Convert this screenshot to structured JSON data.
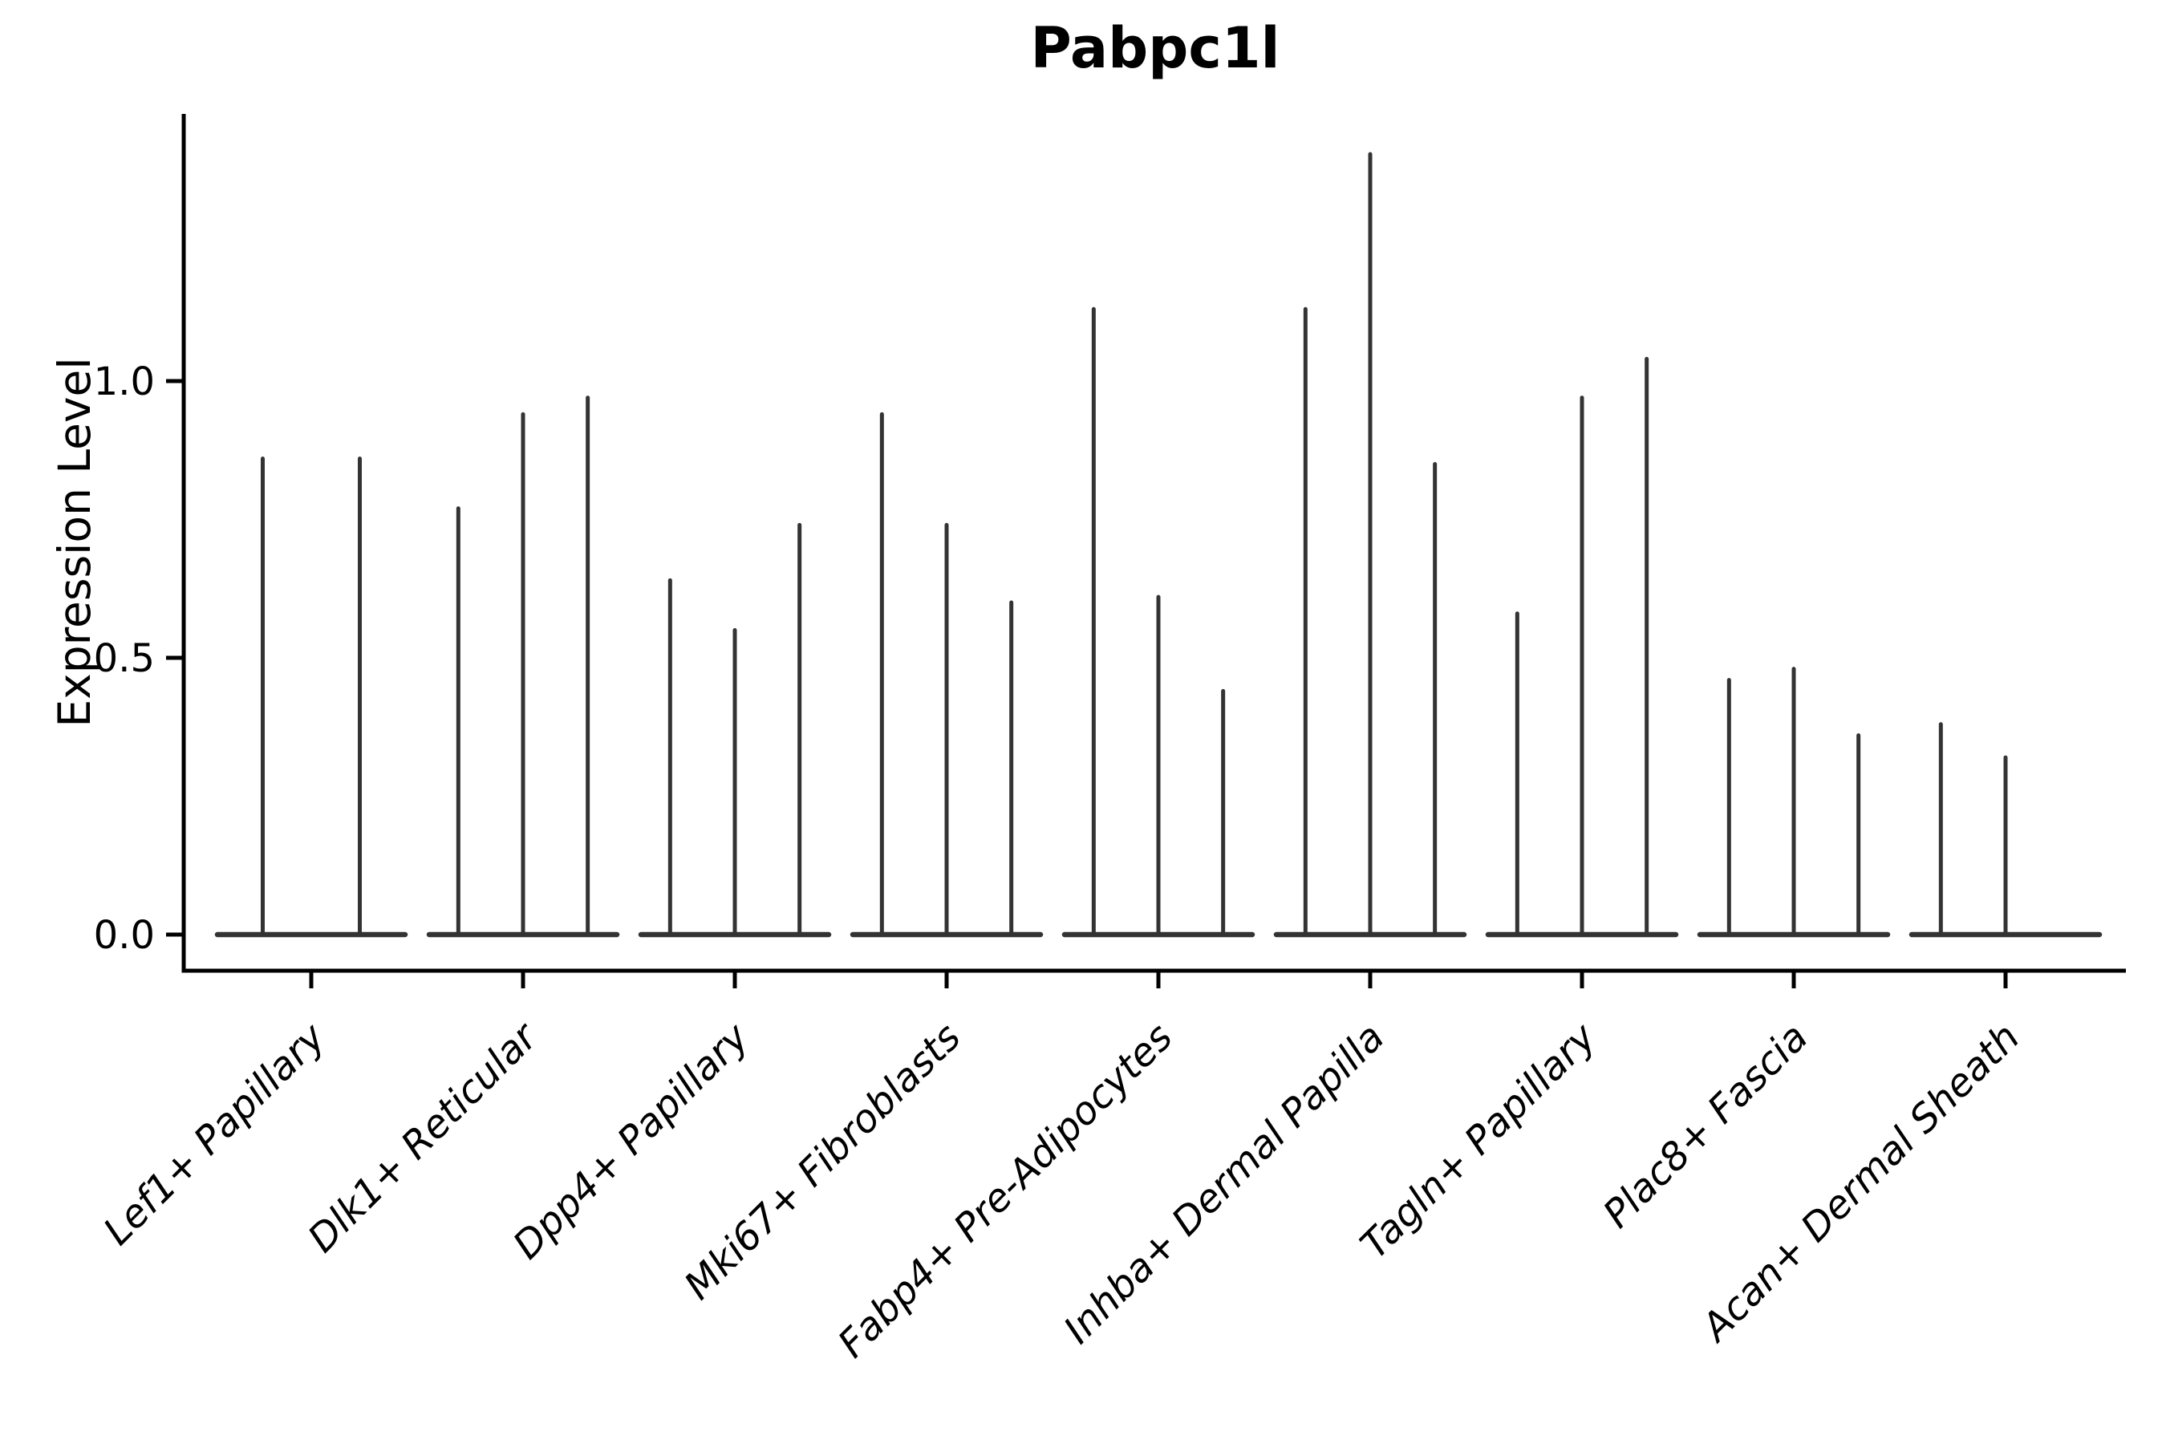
{
  "chart_data": {
    "type": "violin",
    "title": "Pabpc1l",
    "ylabel": "Expression Level",
    "xlabel": "",
    "yticks": [
      {
        "label": "0.0",
        "value": 0.0
      },
      {
        "label": "0.5",
        "value": 0.5
      },
      {
        "label": "1.0",
        "value": 1.0
      }
    ],
    "ylim": [
      -0.07,
      1.48
    ],
    "grid": false,
    "legend": false,
    "x_label_rotation_deg": 45,
    "groups": [
      {
        "category": "Lef1+ Papillary",
        "violin_peaks": [
          0.86,
          0.86
        ]
      },
      {
        "category": "Dlk1+ Reticular",
        "violin_peaks": [
          0.77,
          0.94,
          0.97
        ]
      },
      {
        "category": "Dpp4+ Papillary",
        "violin_peaks": [
          0.64,
          0.55,
          0.74
        ]
      },
      {
        "category": "Mki67+ Fibroblasts",
        "violin_peaks": [
          0.94,
          0.74,
          0.6
        ]
      },
      {
        "category": "Fabp4+ Pre-Adipocytes",
        "violin_peaks": [
          1.13,
          0.61,
          0.44
        ]
      },
      {
        "category": "Inhba+ Dermal Papilla",
        "violin_peaks": [
          1.13,
          1.41,
          0.85
        ]
      },
      {
        "category": "Tagln+ Papillary",
        "violin_peaks": [
          0.58,
          0.97,
          1.04
        ]
      },
      {
        "category": "Plac8+ Fascia",
        "violin_peaks": [
          0.46,
          0.48,
          0.36
        ]
      },
      {
        "category": "Acan+ Dermal Sheath",
        "violin_peaks": [
          0.38,
          0.32,
          0.0
        ]
      }
    ],
    "colors": {
      "violin": "#333333",
      "axis": "#000000",
      "text": "#000000",
      "background": "#ffffff"
    }
  }
}
